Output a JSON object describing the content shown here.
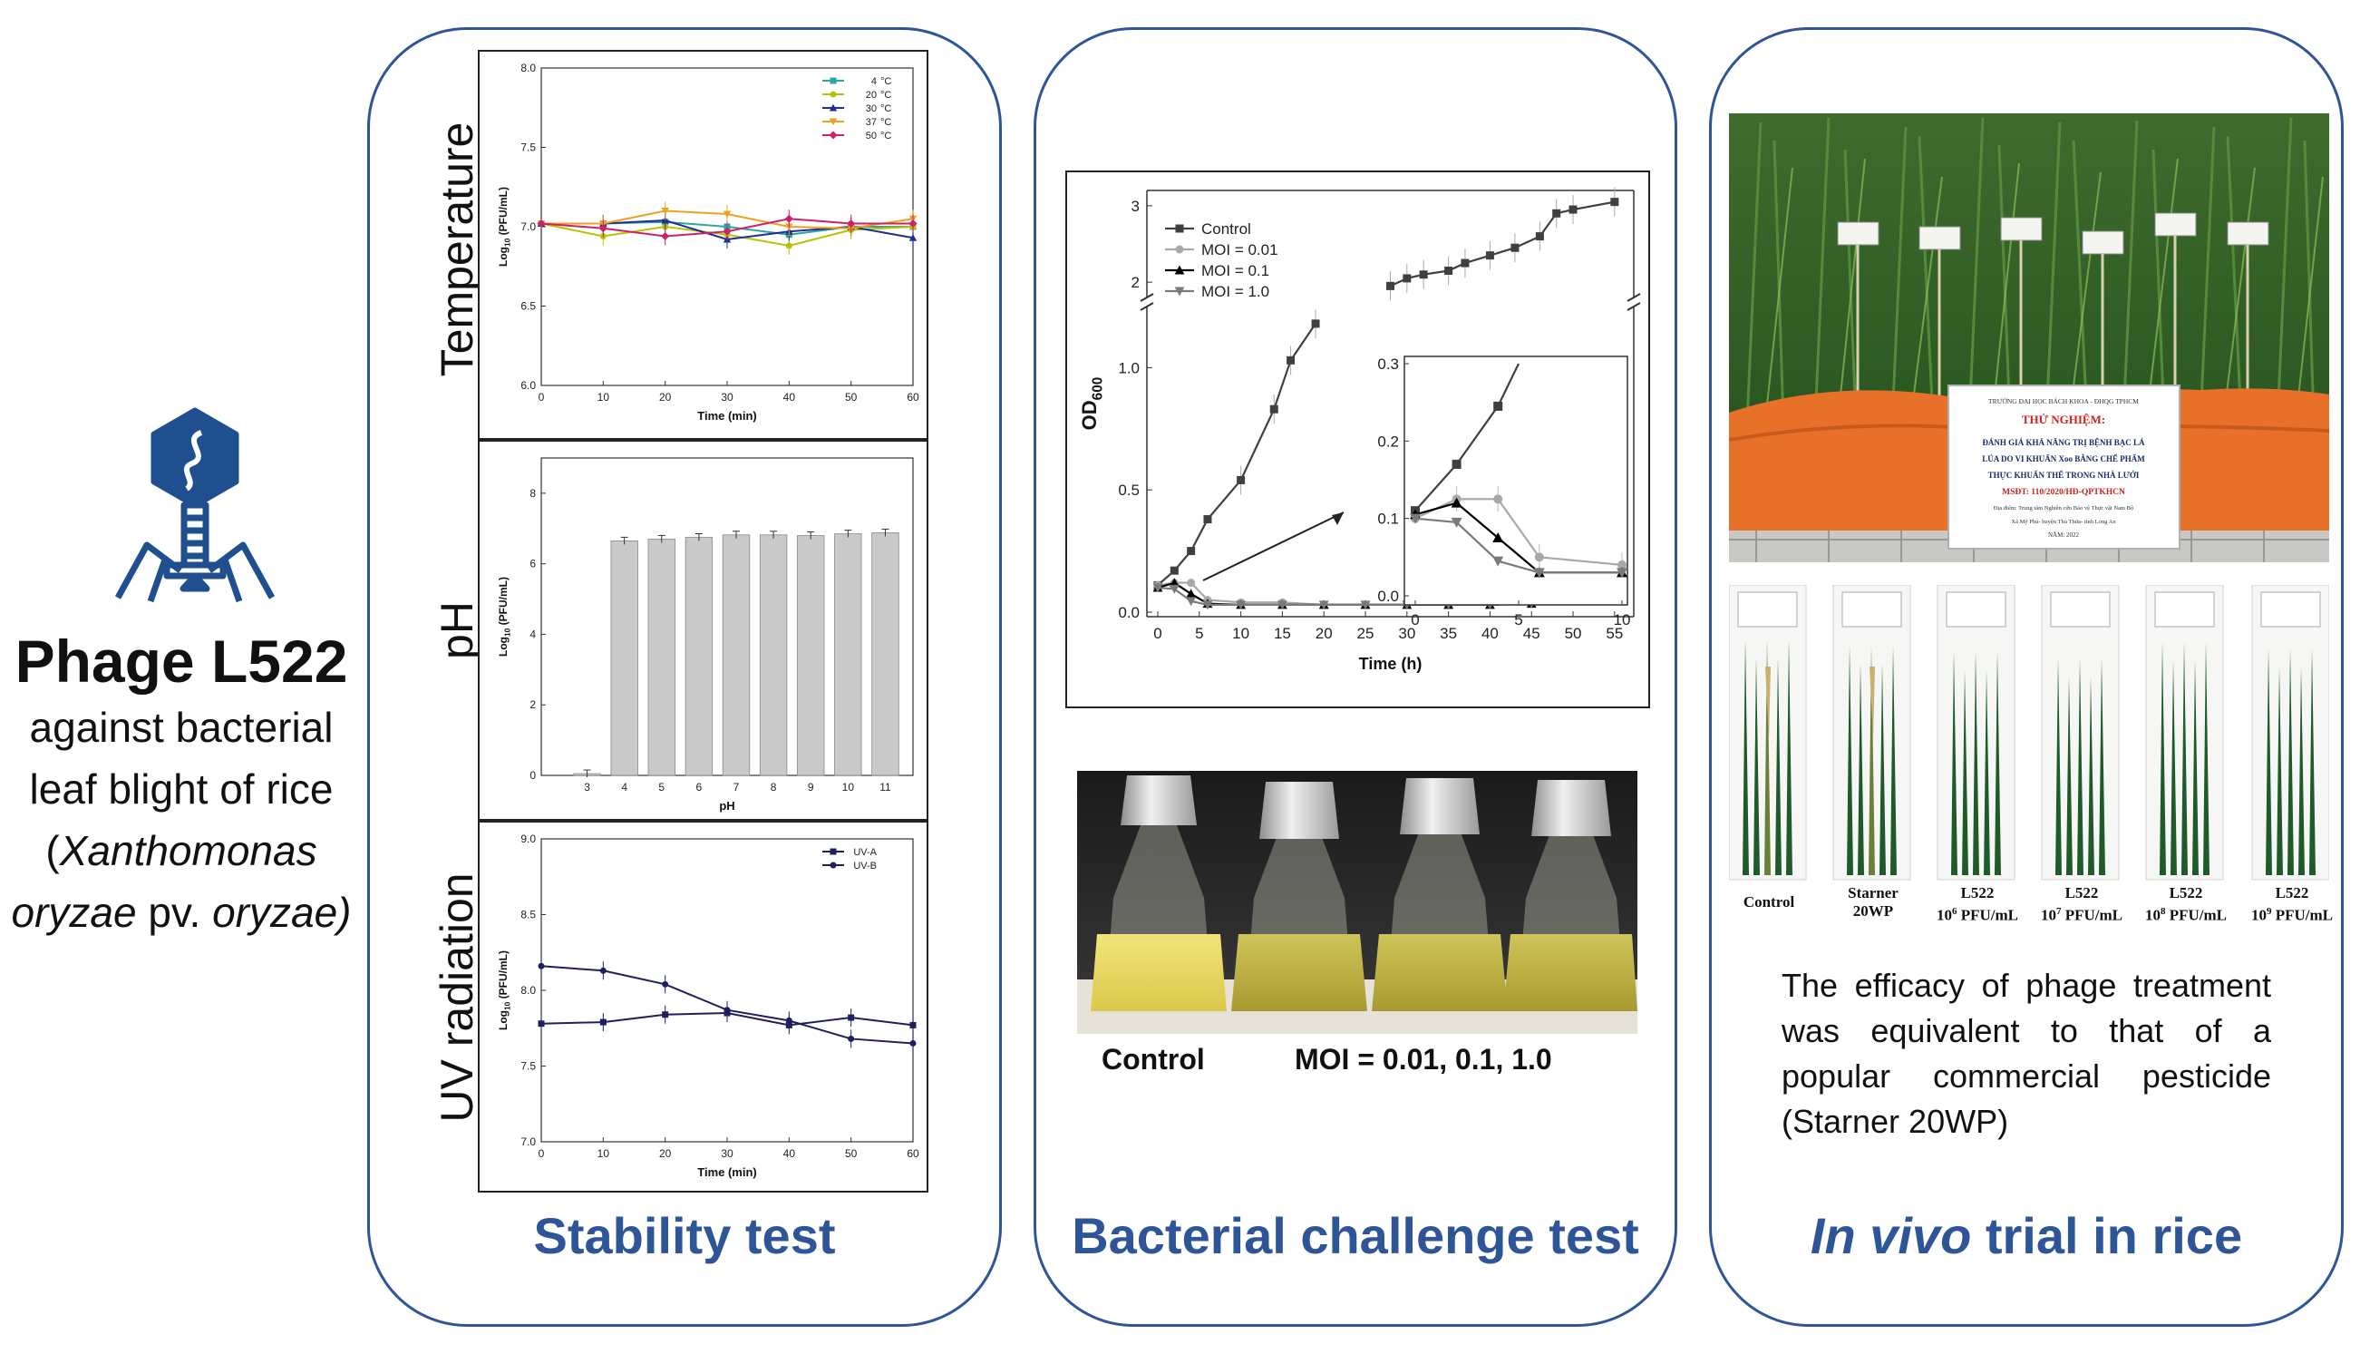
{
  "left": {
    "phage_name": "Phage L522",
    "description_line1": "against bacterial",
    "description_line2": "leaf blight of rice",
    "species_open": "(",
    "species_genus": "Xanthomonas",
    "species_epithet": "oryzae",
    "species_pv": " pv. ",
    "species_variety": "oryzae)",
    "icon": "bacteriophage-icon",
    "accent_color": "#1f4f8f"
  },
  "panels": {
    "stability": {
      "title": "Stability test",
      "row_labels": [
        "Temperature",
        "pH",
        "UV radiation"
      ]
    },
    "challenge": {
      "title": "Bacterial challenge test",
      "flask_caption_control": "Control",
      "flask_caption_moi": "MOI = 0.01, 0.1, 1.0"
    },
    "invivo": {
      "title_italic": "In vivo",
      "title_rest": " trial in rice",
      "sign": {
        "line1": "TRƯỜNG ĐẠI HỌC BÁCH KHOA - ĐHQG TPHCM",
        "line2": "THỬ NGHIỆM:",
        "line3": "ĐÁNH GIÁ KHẢ NĂNG TRỊ BỆNH BẠC LÁ",
        "line4": "LÚA DO VI KHUẨN Xoo BẰNG CHẾ PHẨM",
        "line5": "THỰC KHUẨN THỂ TRONG NHÀ LƯỚI",
        "line6": "MSĐT: 110/2020/HĐ-QPTKHCN",
        "line7": "Địa điểm: Trung tâm Nghiên cứu Bảo vệ Thực vật Nam Bộ",
        "line8": "Xã Mỹ Phú- huyện Thủ Thừa- tỉnh Long An",
        "line9": "NĂM: 2022"
      },
      "leaf_labels": [
        {
          "main": "Control",
          "base": "",
          "exp": "",
          "unit": ""
        },
        {
          "main": "Starner",
          "base": "20WP",
          "exp": "",
          "unit": ""
        },
        {
          "main": "L522",
          "base": "10",
          "exp": "6",
          "unit": " PFU/mL"
        },
        {
          "main": "L522",
          "base": "10",
          "exp": "7",
          "unit": " PFU/mL"
        },
        {
          "main": "L522",
          "base": "10",
          "exp": "8",
          "unit": " PFU/mL"
        },
        {
          "main": "L522",
          "base": "10",
          "exp": "9",
          "unit": " PFU/mL"
        }
      ],
      "efficacy_text": "The efficacy of phage treatment was equivalent to that of a popular commercial pesticide (Starner 20WP)"
    }
  },
  "chart_data": [
    {
      "id": "temperature",
      "type": "line",
      "xlabel": "Time (min)",
      "ylabel_main": "Log",
      "ylabel_sub": "10",
      "ylabel_rest": " (PFU/mL)",
      "x": [
        0,
        10,
        20,
        30,
        40,
        50,
        60
      ],
      "xticks": [
        "0",
        "10",
        "20",
        "30",
        "40",
        "50",
        "60"
      ],
      "yticks": [
        "6.0",
        "6.5",
        "7.0",
        "7.5",
        "8.0"
      ],
      "ylim": [
        6.0,
        8.0
      ],
      "xlim": [
        0,
        60
      ],
      "legend_position": "top-right",
      "legend_unit": "°C",
      "series": [
        {
          "name": "4",
          "color": "#2ca6a4",
          "marker": "square",
          "values": [
            7.02,
            7.02,
            7.03,
            7.0,
            6.95,
            7.0,
            7.0
          ]
        },
        {
          "name": "20",
          "color": "#b5c400",
          "marker": "circle",
          "values": [
            7.02,
            6.94,
            7.0,
            6.95,
            6.88,
            6.98,
            7.0
          ]
        },
        {
          "name": "30",
          "color": "#1f2f8f",
          "marker": "triangle",
          "values": [
            7.02,
            7.02,
            7.04,
            6.92,
            6.97,
            7.0,
            6.93
          ]
        },
        {
          "name": "37",
          "color": "#f0a020",
          "marker": "triangle-down",
          "values": [
            7.02,
            7.02,
            7.1,
            7.08,
            7.0,
            6.99,
            7.05
          ]
        },
        {
          "name": "50",
          "color": "#d0206a",
          "marker": "diamond",
          "values": [
            7.02,
            6.99,
            6.94,
            6.97,
            7.05,
            7.02,
            7.02
          ]
        }
      ]
    },
    {
      "id": "ph",
      "type": "bar",
      "xlabel": "pH",
      "ylabel_main": "Log",
      "ylabel_sub": "10",
      "ylabel_rest": " (PFU/mL)",
      "categories": [
        "3",
        "4",
        "5",
        "6",
        "7",
        "8",
        "9",
        "10",
        "11"
      ],
      "values": [
        0.05,
        6.65,
        6.7,
        6.75,
        6.82,
        6.82,
        6.8,
        6.85,
        6.88
      ],
      "yticks": [
        "0",
        "2",
        "4",
        "6",
        "8"
      ],
      "ylim": [
        0,
        9
      ],
      "color": "#c9c9c9"
    },
    {
      "id": "uv",
      "type": "line",
      "xlabel": "Time (min)",
      "ylabel_main": "Log",
      "ylabel_sub": "10",
      "ylabel_rest": " (PFU/mL)",
      "x": [
        0,
        10,
        20,
        30,
        40,
        50,
        60
      ],
      "xticks": [
        "0",
        "10",
        "20",
        "30",
        "40",
        "50",
        "60"
      ],
      "yticks": [
        "7.0",
        "7.5",
        "8.0",
        "8.5",
        "9.0"
      ],
      "ylim": [
        7.0,
        9.0
      ],
      "xlim": [
        0,
        60
      ],
      "legend_position": "top-right",
      "series": [
        {
          "name": "UV-A",
          "color": "#1f1f5f",
          "marker": "square",
          "values": [
            7.78,
            7.79,
            7.84,
            7.85,
            7.77,
            7.82,
            7.77
          ]
        },
        {
          "name": "UV-B",
          "color": "#1f1f5f",
          "marker": "circle",
          "values": [
            8.16,
            8.13,
            8.04,
            7.87,
            7.8,
            7.68,
            7.65
          ]
        }
      ]
    },
    {
      "id": "od600",
      "type": "line",
      "xlabel": "Time (h)",
      "ylabel_main": "OD",
      "ylabel_sub": "600",
      "x": [
        0,
        2,
        4,
        6,
        10,
        15,
        20,
        25,
        30,
        35,
        40,
        45,
        50,
        55
      ],
      "xticks": [
        "0",
        "5",
        "10",
        "15",
        "20",
        "25",
        "30",
        "35",
        "40",
        "45",
        "50",
        "55"
      ],
      "yticks_lower": [
        "0.0",
        "0.5",
        "1.0"
      ],
      "yticks_upper": [
        "2",
        "3"
      ],
      "ylim_lower": [
        0,
        1.25
      ],
      "ylim_upper": [
        1.8,
        3.2
      ],
      "axis_break": true,
      "legend_position": "top-left",
      "series": [
        {
          "name": "Control",
          "color": "#404040",
          "marker": "square",
          "values": [
            0.11,
            0.17,
            0.25,
            0.38,
            0.54,
            0.83,
            1.03,
            1.18,
            1.95,
            2.05,
            2.1,
            2.15,
            2.25,
            2.35,
            2.45,
            2.6,
            2.9,
            2.95,
            3.05
          ],
          "x": [
            0,
            2,
            4,
            6,
            10,
            14,
            16,
            19,
            28,
            30,
            32,
            35,
            37,
            40,
            43,
            46,
            48,
            50,
            55
          ]
        },
        {
          "name": "MOI = 0.01",
          "color": "#a8a8a8",
          "marker": "circle",
          "values": [
            0.11,
            0.12,
            0.12,
            0.05,
            0.04,
            0.04,
            0.03,
            0.03,
            0.03,
            0.03,
            0.035,
            0.04,
            0.06,
            0.1,
            0.14
          ],
          "x": [
            0,
            2,
            4,
            6,
            10,
            15,
            20,
            25,
            30,
            35,
            40,
            45,
            50,
            53,
            55
          ]
        },
        {
          "name": "MOI = 0.1",
          "color": "#000000",
          "marker": "triangle",
          "values": [
            0.1,
            0.12,
            0.075,
            0.035,
            0.03,
            0.03,
            0.03,
            0.03,
            0.03,
            0.03,
            0.03,
            0.035,
            0.05,
            0.08,
            0.12
          ],
          "x": [
            0,
            2,
            4,
            6,
            10,
            15,
            20,
            25,
            30,
            35,
            40,
            45,
            50,
            53,
            55
          ]
        },
        {
          "name": "MOI = 1.0",
          "color": "#7a7a7a",
          "marker": "triangle-down",
          "values": [
            0.1,
            0.095,
            0.045,
            0.03,
            0.03,
            0.03,
            0.03,
            0.03,
            0.03,
            0.03,
            0.03,
            0.035,
            0.05,
            0.075,
            0.1
          ],
          "x": [
            0,
            2,
            4,
            6,
            10,
            15,
            20,
            25,
            30,
            35,
            40,
            45,
            50,
            53,
            55
          ]
        }
      ],
      "inset": {
        "xlim": [
          0,
          10
        ],
        "ylim": [
          0,
          0.3
        ],
        "xticks": [
          "0",
          "5",
          "10"
        ],
        "yticks": [
          "0.0",
          "0.1",
          "0.2",
          "0.3"
        ],
        "series": [
          {
            "name": "Control",
            "x": [
              0,
              2,
              4,
              5
            ],
            "values": [
              0.11,
              0.17,
              0.245,
              0.3
            ]
          },
          {
            "name": "MOI = 0.01",
            "x": [
              0,
              2,
              4,
              6,
              10
            ],
            "values": [
              0.1,
              0.125,
              0.125,
              0.05,
              0.04
            ]
          },
          {
            "name": "MOI = 0.1",
            "x": [
              0,
              2,
              4,
              6,
              10
            ],
            "values": [
              0.105,
              0.12,
              0.075,
              0.03,
              0.03
            ]
          },
          {
            "name": "MOI = 1.0",
            "x": [
              0,
              2,
              4,
              6,
              10
            ],
            "values": [
              0.1,
              0.095,
              0.045,
              0.03,
              0.03
            ]
          }
        ]
      }
    }
  ]
}
